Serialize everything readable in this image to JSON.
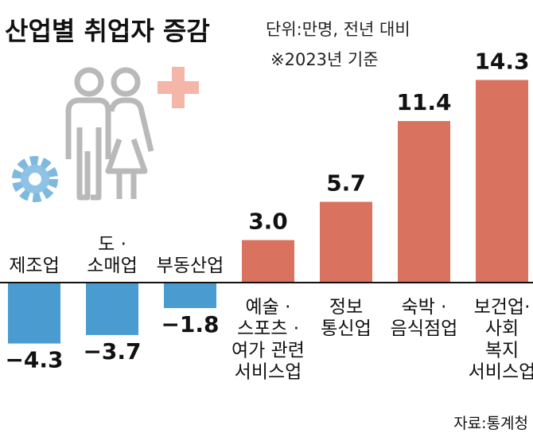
{
  "chart_data": {
    "type": "bar",
    "title": "산업별 취업자 증감",
    "subtitle": "단위:만명, 전년 대비",
    "note": "※2023년 기준",
    "source": "자료:통계청",
    "categories": [
      "제조업",
      "도 ·\n소매업",
      "부동산업",
      "예술 ·\n스포츠 ·\n여가 관련\n서비스업",
      "정보\n통신업",
      "숙박 ·\n음식점업",
      "보건업·\n사회\n복지\n서비스업"
    ],
    "values": [
      -4.3,
      -3.7,
      -1.8,
      3.0,
      5.7,
      11.4,
      14.3
    ],
    "value_labels": [
      "−4.3",
      "−3.7",
      "−1.8",
      "3.0",
      "5.7",
      "11.4",
      "14.3"
    ],
    "negative_color": "#4a9bcf",
    "positive_color": "#d9725e",
    "ylim": [
      -5,
      15
    ]
  }
}
